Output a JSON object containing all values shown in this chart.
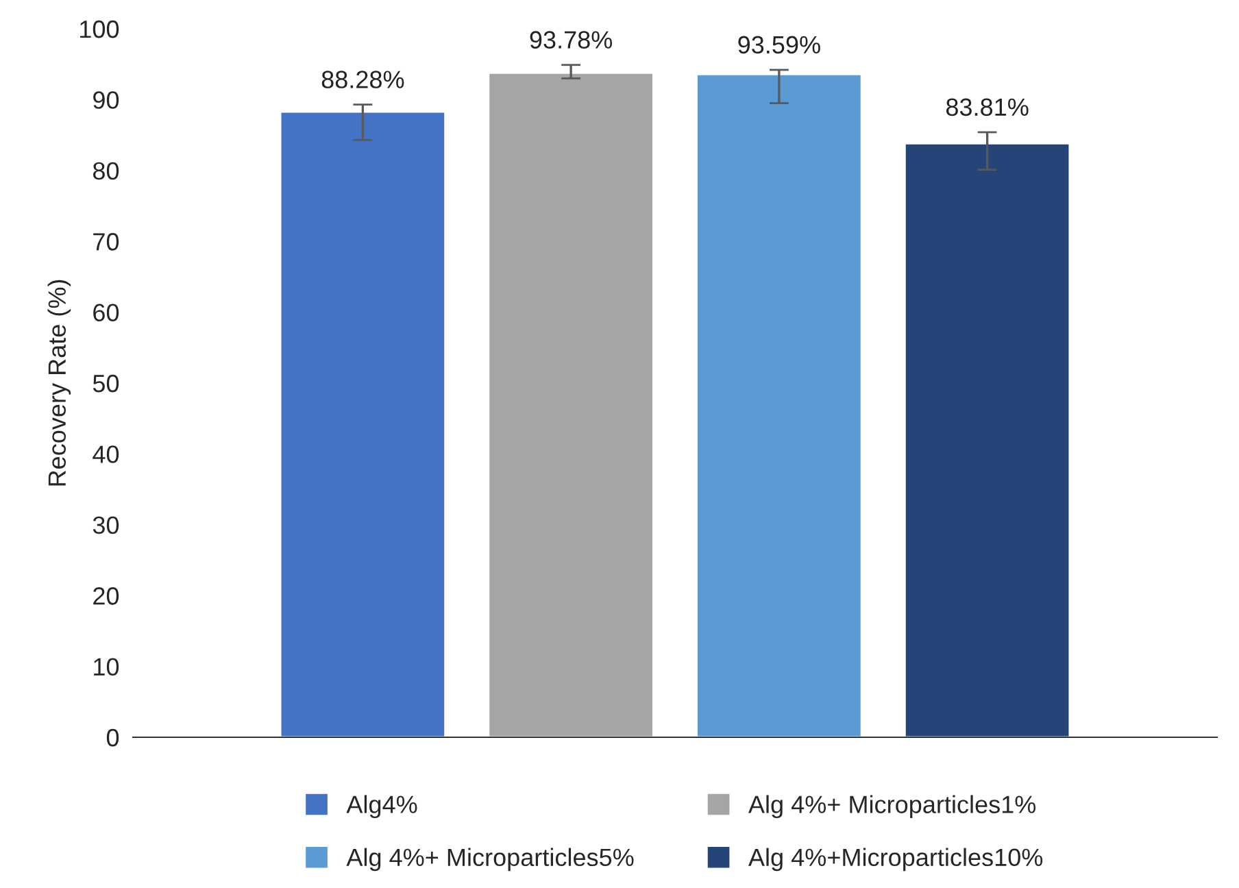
{
  "chart_data": {
    "type": "bar",
    "ylabel": "Recovery Rate (%)",
    "categories": [
      null
    ],
    "series": [
      {
        "name": "Alg4%",
        "color": "#4472c4",
        "values": [
          88.28
        ],
        "errors": [
          [
            84.3,
            89.3
          ]
        ],
        "value_labels": [
          "88.28%"
        ]
      },
      {
        "name": "Alg 4%+ Microparticles1%",
        "color": "#a5a5a5",
        "values": [
          93.78
        ],
        "errors": [
          [
            93.0,
            94.9
          ]
        ],
        "value_labels": [
          "93.78%"
        ]
      },
      {
        "name": "Alg 4%+ Microparticles5%",
        "color": "#5b9bd5",
        "values": [
          93.59
        ],
        "errors": [
          [
            89.5,
            94.2
          ]
        ],
        "value_labels": [
          "93.59%"
        ]
      },
      {
        "name": "Alg 4%+Microparticles10%",
        "color": "#264478",
        "values": [
          83.81
        ],
        "errors": [
          [
            80.1,
            85.4
          ]
        ],
        "value_labels": [
          "83.81%"
        ]
      }
    ],
    "ylim": [
      0,
      100
    ],
    "yticks": [
      0,
      10,
      20,
      30,
      40,
      50,
      60,
      70,
      80,
      90,
      100
    ],
    "grid": false,
    "legend": "bottom"
  }
}
